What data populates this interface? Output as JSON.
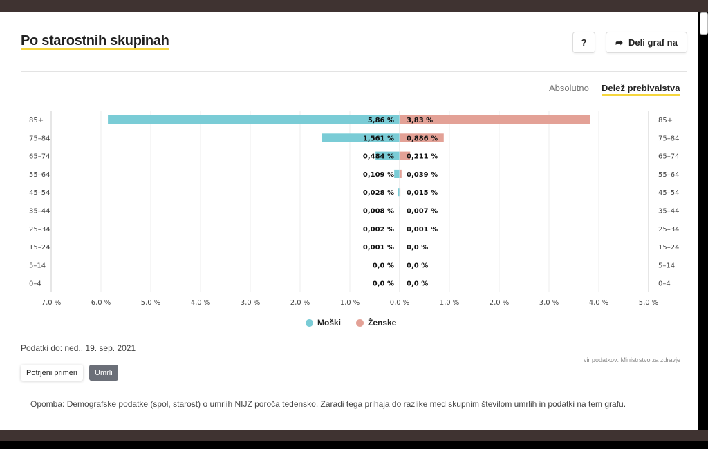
{
  "header": {
    "title": "Po starostnih skupinah",
    "help_label": "?",
    "share_label": "Deli graf na"
  },
  "view_toggle": {
    "options": [
      "Absolutno",
      "Delež prebivalstva"
    ],
    "selected": "Delež prebivalstva"
  },
  "chart_data": {
    "type": "bar",
    "orientation": "horizontal-butterfly",
    "categories": [
      "85+",
      "75–84",
      "65–74",
      "55–64",
      "45–54",
      "35–44",
      "25–34",
      "15–24",
      "5–14",
      "0–4"
    ],
    "series": [
      {
        "name": "Moški",
        "color": "#7accd6",
        "values": [
          5.86,
          1.561,
          0.484,
          0.109,
          0.028,
          0.008,
          0.002,
          0.001,
          0.0,
          0.0
        ],
        "labels": [
          "5,86 %",
          "1,561 %",
          "0,484 %",
          "0,109 %",
          "0,028 %",
          "0,008 %",
          "0,002 %",
          "0,001 %",
          "0,0 %",
          "0,0 %"
        ]
      },
      {
        "name": "Ženske",
        "color": "#e3a196",
        "values": [
          3.83,
          0.886,
          0.211,
          0.039,
          0.015,
          0.007,
          0.001,
          0.0,
          0.0,
          0.0
        ],
        "labels": [
          "3,83 %",
          "0,886 %",
          "0,211 %",
          "0,039 %",
          "0,015 %",
          "0,007 %",
          "0,001 %",
          "0,0 %",
          "0,0 %",
          "0,0 %"
        ]
      }
    ],
    "xlim_left": [
      7.0,
      0
    ],
    "xlim_right": [
      0,
      5.0
    ],
    "ticks_left": [
      "7,0 %",
      "6,0 %",
      "5,0 %",
      "4,0 %",
      "3,0 %",
      "2,0 %",
      "1,0 %",
      "0,0 %"
    ],
    "ticks_right": [
      "1,0 %",
      "2,0 %",
      "3,0 %",
      "4,0 %",
      "5,0 %"
    ],
    "unit": "%",
    "grid": true,
    "legend": "bottom-center"
  },
  "footer": {
    "data_date": "Podatki do: ned., 19. sep. 2021",
    "source": "vir podatkov: Ministrstvo za zdravje",
    "tabs": [
      "Potrjeni primeri",
      "Umrli"
    ],
    "active_tab": "Umrli",
    "note": "Opomba: Demografske podatke (spol, starost) o umrlih NIJZ poroča tedensko. Zaradi tega prihaja do razlike med skupnim številom umrlih in podatki na tem grafu."
  }
}
